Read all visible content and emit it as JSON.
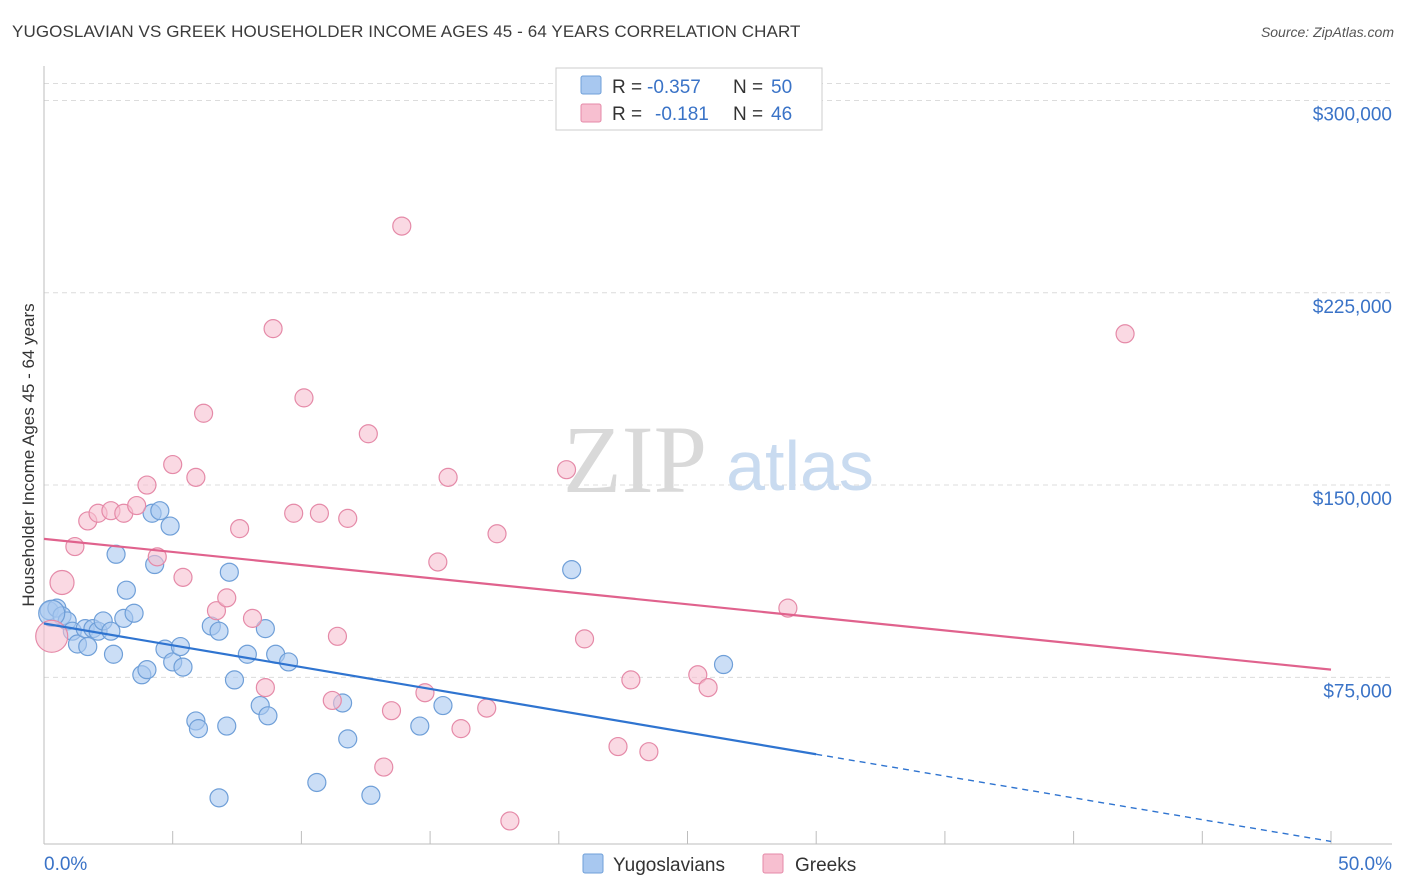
{
  "header": {
    "title": "YUGOSLAVIAN VS GREEK HOUSEHOLDER INCOME AGES 45 - 64 YEARS CORRELATION CHART",
    "source": "Source: ZipAtlas.com"
  },
  "watermark": {
    "zip": "ZIP",
    "atlas": "atlas"
  },
  "legend_box": {
    "rows": [
      {
        "r_label": "R =",
        "r_value": "-0.357",
        "n_label": "N =",
        "n_value": "50",
        "color": "#a8c8f0",
        "stroke": "#6f9fd8"
      },
      {
        "r_label": "R =",
        "r_value": "-0.181",
        "n_label": "N =",
        "n_value": "46",
        "color": "#f7bfd0",
        "stroke": "#e58aa8"
      }
    ]
  },
  "chart_data": {
    "type": "scatter",
    "title": "YUGOSLAVIAN VS GREEK HOUSEHOLDER INCOME AGES 45 - 64 YEARS CORRELATION CHART",
    "ylabel": "Householder Income Ages 45 - 64 years",
    "xlabel": "",
    "xlim": [
      0,
      50
    ],
    "ylim": [
      10000,
      315000
    ],
    "x_tick_labels": [
      "0.0%",
      "50.0%"
    ],
    "y_ticks": [
      75000,
      150000,
      225000,
      300000
    ],
    "y_tick_labels": [
      "$75,000",
      "$150,000",
      "$225,000",
      "$300,000"
    ],
    "grid": true,
    "legend_position": "top-center",
    "series": [
      {
        "name": "Yugoslavians",
        "color": "#a8c8f0",
        "stroke": "#6f9fd8",
        "trend_color": "#2f74d0",
        "trend": {
          "x_start": 0,
          "y_start": 96000,
          "x_solid_end": 30,
          "y_solid_end": 45000,
          "x_end": 50,
          "y_end": 11000
        },
        "points": [
          [
            0.2,
            101000
          ],
          [
            0.5,
            102000
          ],
          [
            0.7,
            99000
          ],
          [
            0.9,
            97000
          ],
          [
            1.1,
            93000
          ],
          [
            1.3,
            88000
          ],
          [
            1.6,
            94000
          ],
          [
            1.7,
            87000
          ],
          [
            1.9,
            94000
          ],
          [
            2.1,
            93000
          ],
          [
            2.3,
            97000
          ],
          [
            2.6,
            93000
          ],
          [
            2.7,
            84000
          ],
          [
            2.8,
            123000
          ],
          [
            3.1,
            98000
          ],
          [
            3.2,
            109000
          ],
          [
            3.5,
            100000
          ],
          [
            3.8,
            76000
          ],
          [
            4.0,
            78000
          ],
          [
            4.2,
            139000
          ],
          [
            4.3,
            119000
          ],
          [
            4.5,
            140000
          ],
          [
            4.7,
            86000
          ],
          [
            4.9,
            134000
          ],
          [
            5.0,
            81000
          ],
          [
            5.3,
            87000
          ],
          [
            5.4,
            79000
          ],
          [
            5.9,
            58000
          ],
          [
            6.0,
            55000
          ],
          [
            6.5,
            95000
          ],
          [
            6.8,
            93000
          ],
          [
            6.8,
            28000
          ],
          [
            7.1,
            56000
          ],
          [
            7.2,
            116000
          ],
          [
            7.4,
            74000
          ],
          [
            7.9,
            84000
          ],
          [
            8.4,
            64000
          ],
          [
            8.6,
            94000
          ],
          [
            8.7,
            60000
          ],
          [
            9.0,
            84000
          ],
          [
            9.5,
            81000
          ],
          [
            10.6,
            34000
          ],
          [
            11.6,
            65000
          ],
          [
            11.8,
            51000
          ],
          [
            12.7,
            29000
          ],
          [
            14.6,
            56000
          ],
          [
            15.5,
            64000
          ],
          [
            20.5,
            117000
          ],
          [
            26.4,
            80000
          ],
          [
            0.3,
            100000
          ]
        ]
      },
      {
        "name": "Greeks",
        "color": "#f7bfd0",
        "stroke": "#e58aa8",
        "trend_color": "#e0628d",
        "trend": {
          "x_start": 0,
          "y_start": 129000,
          "x_end": 50,
          "y_end": 78000
        },
        "points": [
          [
            0.3,
            91000
          ],
          [
            0.7,
            112000
          ],
          [
            1.2,
            126000
          ],
          [
            1.7,
            136000
          ],
          [
            2.1,
            139000
          ],
          [
            2.6,
            140000
          ],
          [
            3.1,
            139000
          ],
          [
            3.6,
            142000
          ],
          [
            4.0,
            150000
          ],
          [
            4.4,
            122000
          ],
          [
            5.0,
            158000
          ],
          [
            5.4,
            114000
          ],
          [
            5.9,
            153000
          ],
          [
            6.2,
            178000
          ],
          [
            6.7,
            101000
          ],
          [
            7.1,
            106000
          ],
          [
            7.6,
            133000
          ],
          [
            8.1,
            98000
          ],
          [
            8.6,
            71000
          ],
          [
            8.9,
            211000
          ],
          [
            9.7,
            139000
          ],
          [
            10.1,
            184000
          ],
          [
            10.7,
            139000
          ],
          [
            11.2,
            66000
          ],
          [
            11.4,
            91000
          ],
          [
            11.8,
            137000
          ],
          [
            12.6,
            170000
          ],
          [
            13.2,
            40000
          ],
          [
            13.5,
            62000
          ],
          [
            13.9,
            251000
          ],
          [
            14.8,
            69000
          ],
          [
            15.3,
            120000
          ],
          [
            15.7,
            153000
          ],
          [
            16.2,
            55000
          ],
          [
            17.2,
            63000
          ],
          [
            17.6,
            131000
          ],
          [
            18.1,
            19000
          ],
          [
            20.3,
            156000
          ],
          [
            21.0,
            90000
          ],
          [
            22.3,
            48000
          ],
          [
            22.8,
            74000
          ],
          [
            23.5,
            46000
          ],
          [
            25.4,
            76000
          ],
          [
            25.8,
            71000
          ],
          [
            28.9,
            102000
          ],
          [
            42.0,
            209000
          ]
        ]
      }
    ]
  },
  "bottom_legend": {
    "items": [
      {
        "label": "Yugoslavians",
        "color": "#a8c8f0",
        "stroke": "#6f9fd8"
      },
      {
        "label": "Greeks",
        "color": "#f7bfd0",
        "stroke": "#e58aa8"
      }
    ]
  }
}
